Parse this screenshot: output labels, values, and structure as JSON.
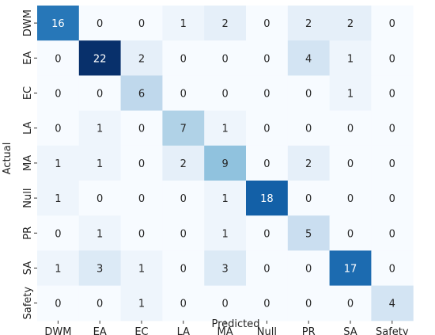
{
  "chart_data": {
    "type": "heatmap",
    "title": "",
    "xlabel": "Predicted",
    "ylabel": "Actual",
    "x_categories": [
      "DWM",
      "EA",
      "EC",
      "LA",
      "MA",
      "Null",
      "PR",
      "SA",
      "Safety"
    ],
    "y_categories": [
      "DWM",
      "EA",
      "EC",
      "LA",
      "MA",
      "Null",
      "PR",
      "SA",
      "Safety"
    ],
    "values": [
      [
        16,
        0,
        0,
        1,
        2,
        0,
        2,
        2,
        0
      ],
      [
        0,
        22,
        2,
        0,
        0,
        0,
        4,
        1,
        0
      ],
      [
        0,
        0,
        6,
        0,
        0,
        0,
        0,
        1,
        0
      ],
      [
        0,
        1,
        0,
        7,
        1,
        0,
        0,
        0,
        0
      ],
      [
        1,
        1,
        0,
        2,
        9,
        0,
        2,
        0,
        0
      ],
      [
        1,
        0,
        0,
        0,
        1,
        18,
        0,
        0,
        0
      ],
      [
        0,
        1,
        0,
        0,
        1,
        0,
        5,
        0,
        0
      ],
      [
        1,
        3,
        1,
        0,
        3,
        0,
        0,
        17,
        0
      ],
      [
        0,
        0,
        1,
        0,
        0,
        0,
        0,
        0,
        4
      ]
    ],
    "colormap": "Blues",
    "value_range": [
      0,
      22
    ],
    "colorbar": false,
    "grid": false
  }
}
